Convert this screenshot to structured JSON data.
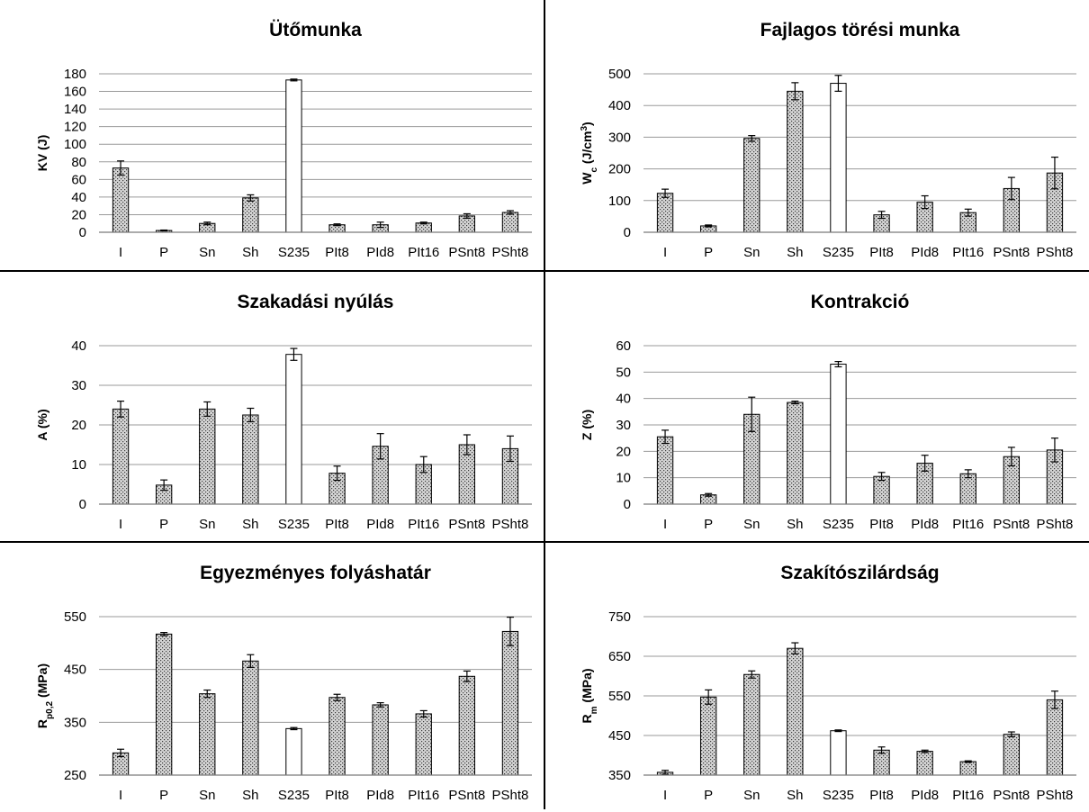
{
  "charts": [
    {
      "type": "bar",
      "title": "Ütőmunka",
      "ylabel": {
        "main": "KV (J)",
        "sub": "",
        "sup": "",
        "rest": ""
      },
      "categories": [
        "I",
        "P",
        "Sn",
        "Sh",
        "S235",
        "PIt8",
        "PId8",
        "PIt16",
        "PSnt8",
        "PSht8"
      ],
      "values": [
        73,
        2,
        10,
        39,
        173,
        8.5,
        8.5,
        10.5,
        18.5,
        22.5
      ],
      "errors": [
        8,
        0.5,
        1.5,
        3.5,
        1,
        1,
        3,
        1,
        2.5,
        2
      ],
      "highlight": [
        "S235"
      ],
      "ylim": [
        0,
        180
      ],
      "yticks": [
        0,
        20,
        40,
        60,
        80,
        100,
        120,
        140,
        160,
        180
      ]
    },
    {
      "type": "bar",
      "title": "Fajlagos törési munka",
      "ylabel": {
        "main": "W",
        "sub": "c",
        "sup": "3",
        "rest": " (J/cm",
        "close": ")"
      },
      "categories": [
        "I",
        "P",
        "Sn",
        "Sh",
        "S235",
        "PIt8",
        "PId8",
        "PIt16",
        "PSnt8",
        "PSht8"
      ],
      "values": [
        123,
        20,
        296,
        445,
        470,
        55,
        95,
        62,
        138,
        187
      ],
      "errors": [
        13,
        3,
        9,
        27,
        25,
        11,
        20,
        11,
        35,
        50
      ],
      "highlight": [
        "S235"
      ],
      "ylim": [
        0,
        500
      ],
      "yticks": [
        0,
        100,
        200,
        300,
        400,
        500
      ]
    },
    {
      "type": "bar",
      "title": "Szakadási nyúlás",
      "ylabel": {
        "main": "A (%)",
        "sub": "",
        "sup": "",
        "rest": ""
      },
      "categories": [
        "I",
        "P",
        "Sn",
        "Sh",
        "S235",
        "PIt8",
        "PId8",
        "PIt16",
        "PSnt8",
        "PSht8"
      ],
      "values": [
        24,
        4.8,
        24,
        22.5,
        37.8,
        7.8,
        14.6,
        10,
        15,
        14
      ],
      "errors": [
        2,
        1.3,
        1.8,
        1.7,
        1.5,
        1.8,
        3.2,
        2,
        2.5,
        3.2
      ],
      "highlight": [
        "S235"
      ],
      "ylim": [
        0,
        40
      ],
      "yticks": [
        0,
        10,
        20,
        30,
        40
      ]
    },
    {
      "type": "bar",
      "title": "Kontrakció",
      "ylabel": {
        "main": "Z (%)",
        "sub": "",
        "sup": "",
        "rest": ""
      },
      "categories": [
        "I",
        "P",
        "Sn",
        "Sh",
        "S235",
        "PIt8",
        "PId8",
        "PIt16",
        "PSnt8",
        "PSht8"
      ],
      "values": [
        25.5,
        3.5,
        34,
        38.5,
        53,
        10.5,
        15.5,
        11.5,
        18,
        20.5
      ],
      "errors": [
        2.5,
        0.5,
        6.5,
        0.5,
        1,
        1.5,
        3,
        1.5,
        3.5,
        4.5
      ],
      "highlight": [
        "S235"
      ],
      "ylim": [
        0,
        60
      ],
      "yticks": [
        0,
        10,
        20,
        30,
        40,
        50,
        60
      ]
    },
    {
      "type": "bar",
      "title": "Egyezményes folyáshatár",
      "ylabel": {
        "main": "R",
        "sub": "p0,2",
        "sup": "",
        "rest": " (MPa)"
      },
      "categories": [
        "I",
        "P",
        "Sn",
        "Sh",
        "S235",
        "PIt8",
        "PId8",
        "PIt16",
        "PSnt8",
        "PSht8"
      ],
      "values": [
        292,
        517,
        404,
        466,
        338,
        397,
        383,
        366,
        437,
        522
      ],
      "errors": [
        7,
        3,
        7,
        12,
        2,
        6,
        4,
        6,
        10,
        27
      ],
      "highlight": [
        "S235"
      ],
      "ylim": [
        250,
        550
      ],
      "yticks": [
        250,
        350,
        450,
        550
      ]
    },
    {
      "type": "bar",
      "title": "Szakítószilárdság",
      "ylabel": {
        "main": "R",
        "sub": "m",
        "sup": "",
        "rest": " (MPa)"
      },
      "categories": [
        "I",
        "P",
        "Sn",
        "Sh",
        "S235",
        "PIt8",
        "PId8",
        "PIt16",
        "PSnt8",
        "PSht8"
      ],
      "values": [
        357,
        547,
        604,
        670,
        462,
        413,
        410,
        384,
        453,
        540
      ],
      "errors": [
        5,
        18,
        9,
        14,
        2,
        8,
        3,
        2,
        6,
        22
      ],
      "highlight": [
        "S235"
      ],
      "ylim": [
        350,
        750
      ],
      "yticks": [
        350,
        450,
        550,
        650,
        750
      ]
    }
  ],
  "colors": {
    "bar_fill": "#d4d4d4",
    "bar_dot": "#3a3a3a",
    "highlight_fill": "#ffffff",
    "outline": "#000000",
    "grid": "#9a9a9a",
    "divider": "#000000"
  }
}
